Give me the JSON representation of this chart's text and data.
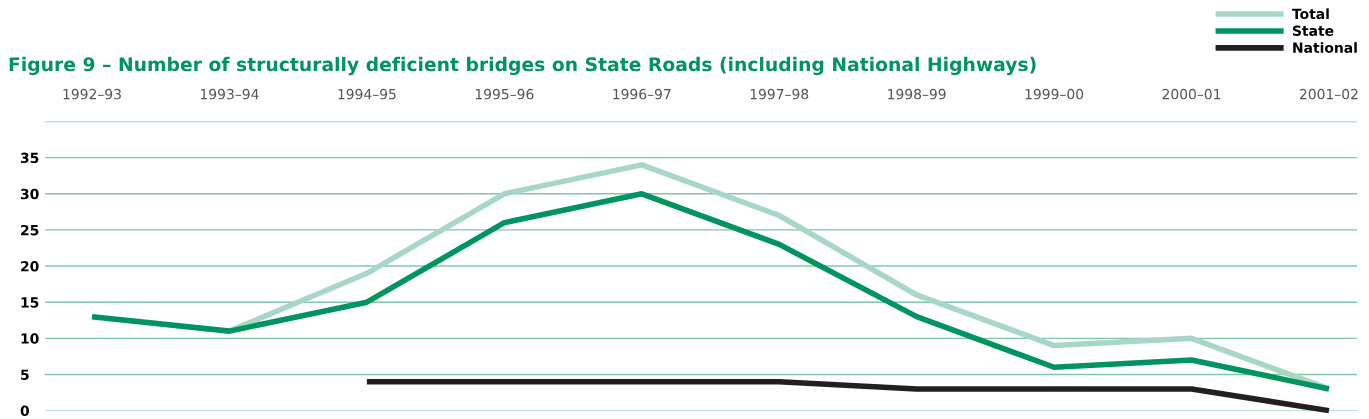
{
  "chart_data": {
    "type": "line",
    "title": "Figure 9 – Number of structurally deficient bridges on State Roads (including National Highways)",
    "categories": [
      "1992–93",
      "1993–94",
      "1994–95",
      "1995–96",
      "1996–97",
      "1997–98",
      "1998–99",
      "1999–00",
      "2000–01",
      "2001–02"
    ],
    "series": [
      {
        "name": "Total",
        "color": "#a8d8c5",
        "values": [
          null,
          11,
          19,
          30,
          34,
          27,
          16,
          9,
          10,
          3
        ]
      },
      {
        "name": "State",
        "color": "#00945e",
        "values": [
          13,
          11,
          15,
          26,
          30,
          23,
          13,
          6,
          7,
          3
        ]
      },
      {
        "name": "National",
        "color": "#231f20",
        "values": [
          null,
          null,
          4,
          4,
          4,
          4,
          3,
          3,
          3,
          0
        ]
      }
    ],
    "ylim": [
      0,
      40
    ],
    "yticks": [
      0,
      5,
      10,
      15,
      20,
      25,
      30,
      35,
      {
        "value": 40,
        "label": null
      }
    ],
    "grid": "y",
    "legend": "top right",
    "marker": "none",
    "line_style": "solid"
  }
}
